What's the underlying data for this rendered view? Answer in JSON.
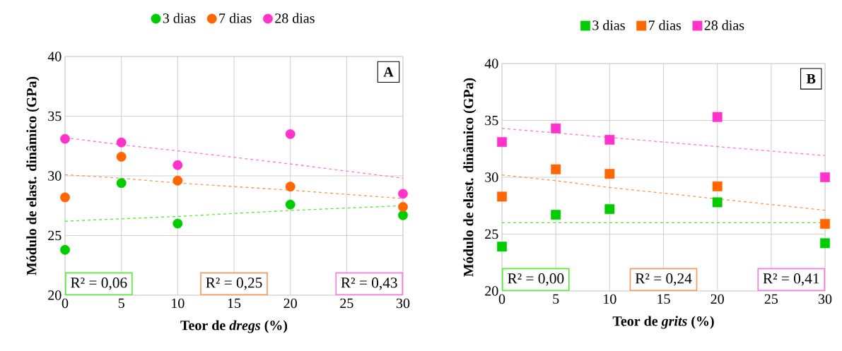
{
  "chart_data": [
    {
      "type": "scatter",
      "x": [
        0,
        5,
        10,
        20,
        30
      ],
      "xlabel": "Teor de *dregs* (%)",
      "ylabel": "Módulo de elast. dinâmico (GPa)",
      "xlim": [
        0,
        30
      ],
      "ylim": [
        20,
        40
      ],
      "xticks": [
        0,
        5,
        10,
        15,
        20,
        25,
        30
      ],
      "yticks": [
        20,
        25,
        30,
        35,
        40
      ],
      "grid": true,
      "legend": "top",
      "marker": "circle",
      "series": [
        {
          "name": "3 dias",
          "color": "#00cc00",
          "values": [
            23.8,
            29.4,
            26.0,
            27.6,
            26.7
          ]
        },
        {
          "name": "7 dias",
          "color": "#ff6600",
          "values": [
            28.2,
            31.6,
            29.6,
            29.1,
            27.4
          ]
        },
        {
          "name": "28 dias",
          "color": "#ff33cc",
          "values": [
            33.1,
            32.8,
            30.9,
            33.5,
            28.5
          ]
        },
        {
          "type": "line",
          "line_style": "dashed",
          "marker": "none",
          "color": "#55ee33",
          "values": [
            26.2,
            26.4,
            26.6,
            27.1,
            27.5
          ]
        },
        {
          "type": "line",
          "line_style": "dashed",
          "marker": "none",
          "color": "#f7985a",
          "values": [
            30.1,
            29.8,
            29.4,
            28.8,
            28.1
          ]
        },
        {
          "type": "line",
          "line_style": "dashed",
          "marker": "none",
          "color": "#ff77dd",
          "values": [
            33.2,
            32.6,
            32.1,
            31.0,
            29.8
          ]
        }
      ],
      "annotations": [
        "R² = 0,06",
        "R² = 0,25",
        "R² = 0,43",
        "A"
      ]
    },
    {
      "type": "scatter",
      "x": [
        0,
        5,
        10,
        20,
        30
      ],
      "xlabel": "Teor de *grits* (%)",
      "ylabel": "Módulo de elast. dinâmico (GPa)",
      "xlim": [
        0,
        30
      ],
      "ylim": [
        20,
        40
      ],
      "xticks": [
        0,
        5,
        10,
        15,
        20,
        25,
        30
      ],
      "yticks": [
        20,
        25,
        30,
        35,
        40
      ],
      "grid": true,
      "legend": "top",
      "marker": "square",
      "series": [
        {
          "name": "3 dias",
          "color": "#00cc00",
          "values": [
            23.9,
            26.7,
            27.2,
            27.8,
            24.2
          ]
        },
        {
          "name": "7 dias",
          "color": "#ff6600",
          "values": [
            28.3,
            30.7,
            30.3,
            29.2,
            25.9
          ]
        },
        {
          "name": "28 dias",
          "color": "#ff33cc",
          "values": [
            33.1,
            34.3,
            33.3,
            35.3,
            30.0
          ]
        },
        {
          "type": "line",
          "line_style": "dashed",
          "marker": "none",
          "color": "#55ee33",
          "values": [
            26.0,
            26.0,
            26.0,
            26.0,
            26.0
          ]
        },
        {
          "type": "line",
          "line_style": "dashed",
          "marker": "none",
          "color": "#f7985a",
          "values": [
            30.2,
            29.7,
            29.1,
            28.1,
            27.1
          ]
        },
        {
          "type": "line",
          "line_style": "dashed",
          "marker": "none",
          "color": "#ff77dd",
          "values": [
            34.3,
            33.9,
            33.5,
            32.7,
            31.9
          ]
        }
      ],
      "annotations": [
        "R² = 0,00",
        "R² = 0,24",
        "R² = 0,41",
        "B"
      ]
    }
  ]
}
